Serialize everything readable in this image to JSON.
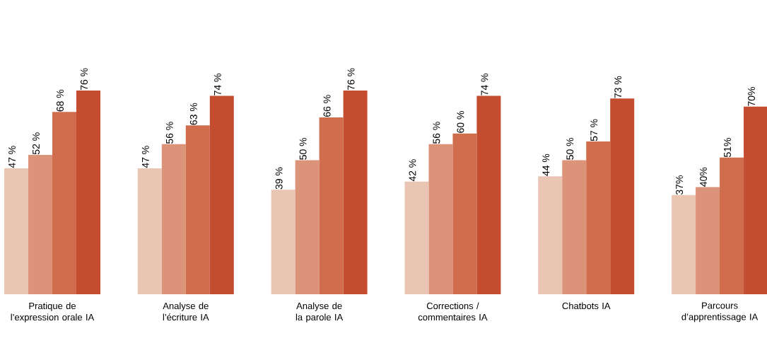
{
  "chart_data": {
    "type": "bar",
    "categories": [
      "Pratique de l’expression orale IA",
      "Analyse de l’écriture IA",
      "Analyse de la parole IA",
      "Corrections / commentaires IA",
      "Chatbots IA",
      "Parcours d’apprentissage IA"
    ],
    "series": [
      {
        "color": "#ebc5b3",
        "values": [
          47,
          47,
          39,
          42,
          44,
          37
        ],
        "value_labels": [
          "47 %",
          "47 %",
          "39 %",
          "42 %",
          "44  %",
          "37%"
        ]
      },
      {
        "color": "#db9479",
        "values": [
          52,
          56,
          50,
          56,
          50,
          40
        ],
        "value_labels": [
          "52 %",
          "56 %",
          "50 %",
          "56 %",
          "50 %",
          "40%"
        ]
      },
      {
        "color": "#d06d4d",
        "values": [
          68,
          63,
          66,
          60,
          57,
          51
        ],
        "value_labels": [
          "68 %",
          "63 %",
          "66 %",
          "60 %",
          "57 %",
          "51%"
        ]
      },
      {
        "color": "#c44c2f",
        "values": [
          76,
          74,
          76,
          74,
          73,
          70
        ],
        "value_labels": [
          "76 %",
          "74 %",
          "76 %",
          "74 %",
          "73 %",
          "70%"
        ]
      }
    ]
  }
}
